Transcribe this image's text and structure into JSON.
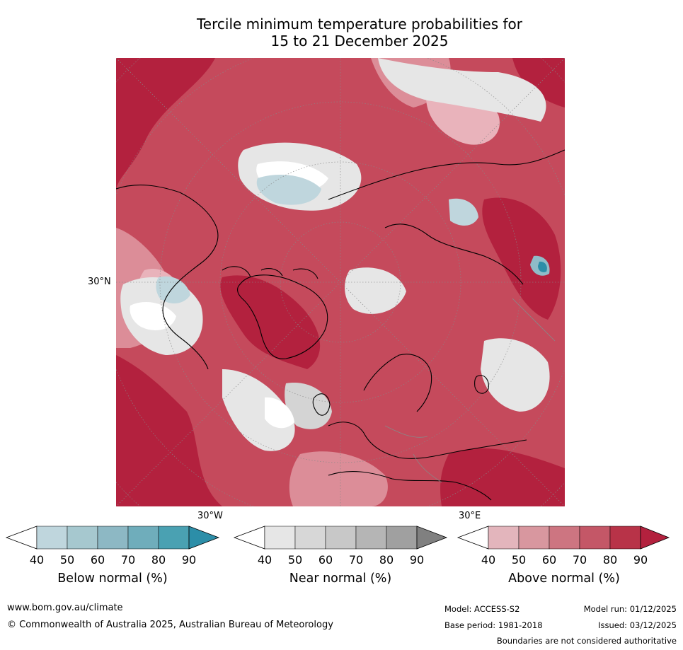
{
  "title": {
    "line1": "Tercile minimum temperature probabilities for",
    "line2": "15 to 21 December 2025"
  },
  "map": {
    "graticule_labels": {
      "lat_30n": "30°N",
      "lon_30w": "30°W",
      "lon_30e": "30°E"
    },
    "colors": {
      "above_base": "#c54a5c",
      "above_dark": "#b3213e",
      "above_light": "#dc8d98",
      "above_pale": "#e9b3bb",
      "near_light": "#e6e6e6",
      "near_mid": "#d4d4d4",
      "below_light": "#bfd6dd",
      "below_mid": "#8fbcc8",
      "below_dark": "#2c8ea8",
      "white": "#ffffff"
    }
  },
  "colorbars": {
    "tick_labels": [
      "40",
      "50",
      "60",
      "70",
      "80",
      "90"
    ],
    "below": {
      "label": "Below normal (%)",
      "colors": [
        "#ffffff",
        "#bfd6dd",
        "#a6c8cf",
        "#8db8c4",
        "#6fadbb",
        "#4aa1b2",
        "#2c8ea8"
      ]
    },
    "near": {
      "label": "Near normal (%)",
      "colors": [
        "#ffffff",
        "#e6e6e6",
        "#d7d7d7",
        "#c8c8c8",
        "#b5b5b5",
        "#a0a0a0",
        "#808080"
      ]
    },
    "above": {
      "label": "Above normal (%)",
      "colors": [
        "#ffffff",
        "#e3b5bc",
        "#d8979f",
        "#cd7581",
        "#c45767",
        "#b83348",
        "#b3213e"
      ]
    }
  },
  "footer": {
    "website": "www.bom.gov.au/climate",
    "copyright": "© Commonwealth of Australia 2025, Australian Bureau of Meteorology",
    "model": "Model: ACCESS-S2",
    "base_period": "Base period: 1981-2018",
    "model_run": "Model run: 01/12/2025",
    "issued": "Issued: 03/12/2025",
    "disclaimer": "Boundaries are not considered authoritative"
  }
}
